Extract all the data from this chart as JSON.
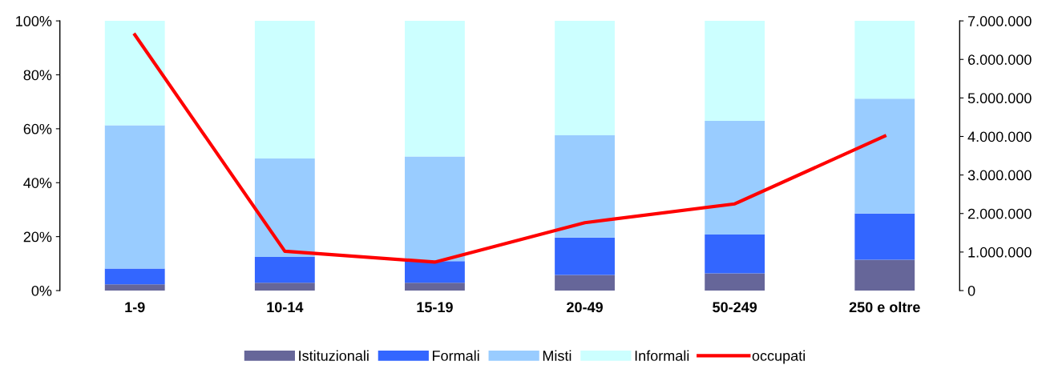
{
  "chart_data": {
    "type": "bar",
    "stacked": true,
    "categories": [
      "1-9",
      "10-14",
      "15-19",
      "20-49",
      "50-249",
      "250 e oltre"
    ],
    "series": [
      {
        "name": "Istituzionali",
        "color": "#666699",
        "values": [
          2.3,
          2.9,
          2.9,
          5.8,
          6.4,
          11.4
        ]
      },
      {
        "name": "Formali",
        "color": "#3366ff",
        "values": [
          5.9,
          9.6,
          8.0,
          13.9,
          14.4,
          17.2
        ]
      },
      {
        "name": "Misti",
        "color": "#99ccff",
        "values": [
          53.1,
          36.5,
          38.8,
          37.9,
          42.1,
          42.6
        ]
      },
      {
        "name": "Informali",
        "color": "#ccffff",
        "values": [
          38.7,
          51.0,
          50.3,
          42.4,
          37.1,
          28.8
        ]
      },
      {
        "name": "occupati",
        "type": "line",
        "axis": "y2",
        "color": "#ff0000",
        "values": [
          6640000,
          1020000,
          740000,
          1760000,
          2250000,
          4010000
        ]
      }
    ],
    "ylim": [
      0,
      100
    ],
    "yticks": [
      {
        "value": 0,
        "label": "0%"
      },
      {
        "value": 20,
        "label": "20%"
      },
      {
        "value": 40,
        "label": "40%"
      },
      {
        "value": 60,
        "label": "60%"
      },
      {
        "value": 80,
        "label": "80%"
      },
      {
        "value": 100,
        "label": "100%"
      }
    ],
    "y2lim": [
      0,
      7000000
    ],
    "y2ticks": [
      0,
      {
        "value": 1000000,
        "label": "1.000.000"
      },
      {
        "value": 2000000,
        "label": "2.000.000"
      },
      {
        "value": 3000000,
        "label": "3.000.000"
      },
      {
        "value": 4000000,
        "label": "4.000.000"
      },
      {
        "value": 5000000,
        "label": "5.000.000"
      },
      {
        "value": 6000000,
        "label": "6.000.000"
      },
      {
        "value": 7000000,
        "label": "7.000.000"
      }
    ],
    "grid": false,
    "legend": "bottom",
    "marker": "none",
    "line_style": "solid"
  }
}
